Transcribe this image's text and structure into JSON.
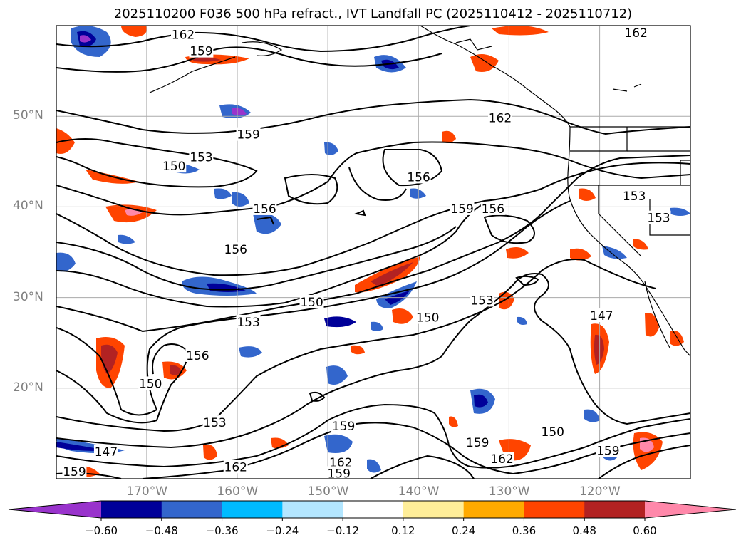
{
  "title": "2025110200 F036 500 hPa refract., IVT Landfall PC (2025110412 - 2025110712)",
  "map": {
    "lon_range": [
      -180,
      -110
    ],
    "lat_range": [
      10,
      60
    ],
    "lat_ticks": [
      {
        "value": 50,
        "label": "50°N"
      },
      {
        "value": 40,
        "label": "40°N"
      },
      {
        "value": 30,
        "label": "30°N"
      },
      {
        "value": 20,
        "label": "20°N"
      }
    ],
    "lon_ticks": [
      {
        "value": -170,
        "label": "170°W"
      },
      {
        "value": -160,
        "label": "160°W"
      },
      {
        "value": -150,
        "label": "150°W"
      },
      {
        "value": -140,
        "label": "140°W"
      },
      {
        "value": -130,
        "label": "130°W"
      },
      {
        "value": -120,
        "label": "120°W"
      }
    ],
    "contour_labels": [
      {
        "text": "162",
        "lon": -166,
        "lat": 59
      },
      {
        "text": "159",
        "lon": -164,
        "lat": 57.2
      },
      {
        "text": "162",
        "lon": -116,
        "lat": 59.2
      },
      {
        "text": "162",
        "lon": -131,
        "lat": 49.8
      },
      {
        "text": "159",
        "lon": -158.8,
        "lat": 48
      },
      {
        "text": "153",
        "lon": -164,
        "lat": 45.5
      },
      {
        "text": "150",
        "lon": -167,
        "lat": 44.5
      },
      {
        "text": "156",
        "lon": -140,
        "lat": 43.3
      },
      {
        "text": "156",
        "lon": -157,
        "lat": 39.8
      },
      {
        "text": "159",
        "lon": -135.2,
        "lat": 39.8
      },
      {
        "text": "156",
        "lon": -131.8,
        "lat": 39.8
      },
      {
        "text": "153",
        "lon": -116.2,
        "lat": 41.2
      },
      {
        "text": "153",
        "lon": -113.5,
        "lat": 38.8
      },
      {
        "text": "156",
        "lon": -160.2,
        "lat": 35.3
      },
      {
        "text": "150",
        "lon": -151.8,
        "lat": 29.5
      },
      {
        "text": "153",
        "lon": -133,
        "lat": 29.7
      },
      {
        "text": "150",
        "lon": -139,
        "lat": 27.8
      },
      {
        "text": "147",
        "lon": -119.8,
        "lat": 28
      },
      {
        "text": "153",
        "lon": -158.8,
        "lat": 27.3
      },
      {
        "text": "156",
        "lon": -164.4,
        "lat": 23.6
      },
      {
        "text": "150",
        "lon": -169.6,
        "lat": 20.5
      },
      {
        "text": "153",
        "lon": -162.5,
        "lat": 16.2
      },
      {
        "text": "159",
        "lon": -148.3,
        "lat": 15.8
      },
      {
        "text": "150",
        "lon": -125.2,
        "lat": 15.2
      },
      {
        "text": "159",
        "lon": -133.5,
        "lat": 14
      },
      {
        "text": "147",
        "lon": -174.5,
        "lat": 13
      },
      {
        "text": "162",
        "lon": -130.8,
        "lat": 12.2
      },
      {
        "text": "159",
        "lon": -119.1,
        "lat": 13.1
      },
      {
        "text": "162",
        "lon": -160.2,
        "lat": 11.3
      },
      {
        "text": "162",
        "lon": -148.6,
        "lat": 11.8
      },
      {
        "text": "159",
        "lon": -178,
        "lat": 10.8
      },
      {
        "text": "159",
        "lon": -148.8,
        "lat": 10.6
      }
    ]
  },
  "colorbar": {
    "tick_labels": [
      "−0.60",
      "−0.48",
      "−0.36",
      "−0.24",
      "−0.12",
      "0.12",
      "0.24",
      "0.36",
      "0.48",
      "0.60"
    ],
    "colors": [
      "#9933cc",
      "#000099",
      "#3366cc",
      "#00bbff",
      "#b3e6ff",
      "#ffffff",
      "#ffee99",
      "#ffaa00",
      "#ff4400",
      "#b22222",
      "#ff88aa"
    ]
  }
}
